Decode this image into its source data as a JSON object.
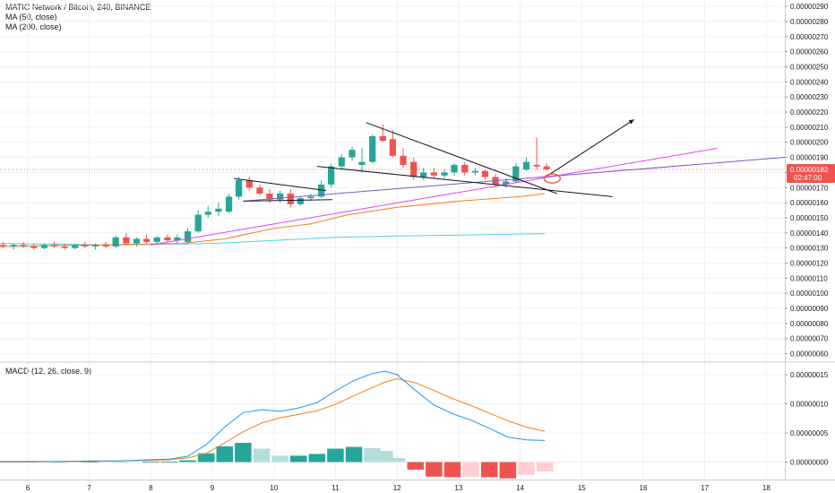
{
  "header": {
    "symbol": "MATIC Network / Bitcoin, 240, BINANCE",
    "ma50": "MA (50, close)",
    "ma200": "MA (200, close)"
  },
  "macd": {
    "label": "MACD (12, 26, close, 9)",
    "line_color": "#2196f3",
    "signal_color": "#f57f17"
  },
  "price_tag": {
    "price": "0.00000182",
    "countdown": "02:47:00",
    "color": "#ef5350"
  },
  "colors": {
    "up": "#26a69a",
    "down": "#ef5350",
    "ma50": "#f57f17",
    "ma200": "#4dd0e1",
    "pink_line": "#e040fb",
    "purple_line": "#7e57c2",
    "trend_line": "#131722",
    "grid": "#eef0f3"
  },
  "chart_data": [
    {
      "type": "candlestick",
      "title": "MATIC Network / Bitcoin, 240, BINANCE",
      "x_ticks": [
        "6",
        "7",
        "8",
        "9",
        "10",
        "11",
        "12",
        "13",
        "14",
        "15",
        "16",
        "17",
        "18"
      ],
      "x_range_days": [
        5.55,
        18.3
      ],
      "y_ticks": [
        "0.00000060",
        "0.00000070",
        "0.00000080",
        "0.00000090",
        "0.00000100",
        "0.00000110",
        "0.00000120",
        "0.00000130",
        "0.00000140",
        "0.00000150",
        "0.00000160",
        "0.00000170",
        "0.00000180",
        "0.00000190",
        "0.00000200",
        "0.00000210",
        "0.00000220",
        "0.00000230",
        "0.00000240",
        "0.00000250",
        "0.00000260",
        "0.00000270",
        "0.00000280",
        "0.00000290"
      ],
      "ylim": [
        5.5e-07,
        2.942e-06
      ],
      "current_price": 1.82e-06,
      "candles": [
        {
          "t": 5.6,
          "o": 132,
          "h": 134,
          "l": 130,
          "c": 131
        },
        {
          "t": 5.77,
          "o": 131,
          "h": 133,
          "l": 129,
          "c": 132
        },
        {
          "t": 5.93,
          "o": 132,
          "h": 134,
          "l": 130,
          "c": 131
        },
        {
          "t": 6.1,
          "o": 131,
          "h": 133,
          "l": 129,
          "c": 130
        },
        {
          "t": 6.27,
          "o": 130,
          "h": 133,
          "l": 129,
          "c": 132
        },
        {
          "t": 6.43,
          "o": 132,
          "h": 134,
          "l": 130,
          "c": 131
        },
        {
          "t": 6.6,
          "o": 131,
          "h": 133,
          "l": 129,
          "c": 130
        },
        {
          "t": 6.77,
          "o": 130,
          "h": 133,
          "l": 129,
          "c": 132
        },
        {
          "t": 6.93,
          "o": 132,
          "h": 134,
          "l": 130,
          "c": 131
        },
        {
          "t": 7.1,
          "o": 131,
          "h": 133,
          "l": 129,
          "c": 132
        },
        {
          "t": 7.27,
          "o": 132,
          "h": 134,
          "l": 130,
          "c": 131
        },
        {
          "t": 7.43,
          "o": 131,
          "h": 138,
          "l": 130,
          "c": 137
        },
        {
          "t": 7.6,
          "o": 137,
          "h": 140,
          "l": 132,
          "c": 133
        },
        {
          "t": 7.77,
          "o": 133,
          "h": 137,
          "l": 131,
          "c": 136
        },
        {
          "t": 7.93,
          "o": 136,
          "h": 139,
          "l": 133,
          "c": 134
        },
        {
          "t": 8.1,
          "o": 134,
          "h": 138,
          "l": 132,
          "c": 137
        },
        {
          "t": 8.27,
          "o": 137,
          "h": 139,
          "l": 134,
          "c": 135
        },
        {
          "t": 8.43,
          "o": 135,
          "h": 139,
          "l": 133,
          "c": 137
        },
        {
          "t": 8.6,
          "o": 134,
          "h": 143,
          "l": 133,
          "c": 141
        },
        {
          "t": 8.77,
          "o": 141,
          "h": 155,
          "l": 140,
          "c": 152
        },
        {
          "t": 8.93,
          "o": 152,
          "h": 158,
          "l": 150,
          "c": 154
        },
        {
          "t": 9.1,
          "o": 154,
          "h": 160,
          "l": 151,
          "c": 156
        },
        {
          "t": 9.27,
          "o": 154,
          "h": 166,
          "l": 153,
          "c": 164
        },
        {
          "t": 9.43,
          "o": 164,
          "h": 177,
          "l": 162,
          "c": 175
        },
        {
          "t": 9.6,
          "o": 175,
          "h": 177,
          "l": 168,
          "c": 170
        },
        {
          "t": 9.77,
          "o": 170,
          "h": 172,
          "l": 165,
          "c": 166
        },
        {
          "t": 9.93,
          "o": 166,
          "h": 169,
          "l": 160,
          "c": 162
        },
        {
          "t": 10.1,
          "o": 162,
          "h": 168,
          "l": 160,
          "c": 166
        },
        {
          "t": 10.27,
          "o": 166,
          "h": 169,
          "l": 157,
          "c": 159
        },
        {
          "t": 10.43,
          "o": 159,
          "h": 164,
          "l": 158,
          "c": 163
        },
        {
          "t": 10.6,
          "o": 163,
          "h": 166,
          "l": 161,
          "c": 164
        },
        {
          "t": 10.77,
          "o": 164,
          "h": 175,
          "l": 163,
          "c": 172
        },
        {
          "t": 10.93,
          "o": 172,
          "h": 186,
          "l": 170,
          "c": 184
        },
        {
          "t": 11.1,
          "o": 184,
          "h": 192,
          "l": 182,
          "c": 190
        },
        {
          "t": 11.27,
          "o": 190,
          "h": 197,
          "l": 188,
          "c": 195
        },
        {
          "t": 11.43,
          "o": 185,
          "h": 196,
          "l": 180,
          "c": 187
        },
        {
          "t": 11.6,
          "o": 187,
          "h": 205,
          "l": 186,
          "c": 204
        },
        {
          "t": 11.77,
          "o": 204,
          "h": 212,
          "l": 200,
          "c": 201
        },
        {
          "t": 11.93,
          "o": 202,
          "h": 208,
          "l": 190,
          "c": 191
        },
        {
          "t": 12.1,
          "o": 191,
          "h": 196,
          "l": 183,
          "c": 185
        },
        {
          "t": 12.27,
          "o": 187,
          "h": 190,
          "l": 175,
          "c": 177
        },
        {
          "t": 12.43,
          "o": 177,
          "h": 183,
          "l": 175,
          "c": 180
        },
        {
          "t": 12.6,
          "o": 180,
          "h": 183,
          "l": 176,
          "c": 178
        },
        {
          "t": 12.77,
          "o": 178,
          "h": 182,
          "l": 176,
          "c": 180
        },
        {
          "t": 12.93,
          "o": 180,
          "h": 186,
          "l": 178,
          "c": 185
        },
        {
          "t": 13.1,
          "o": 185,
          "h": 187,
          "l": 178,
          "c": 180
        },
        {
          "t": 13.27,
          "o": 180,
          "h": 183,
          "l": 178,
          "c": 181
        },
        {
          "t": 13.43,
          "o": 181,
          "h": 182,
          "l": 175,
          "c": 177
        },
        {
          "t": 13.6,
          "o": 177,
          "h": 179,
          "l": 170,
          "c": 172
        },
        {
          "t": 13.77,
          "o": 172,
          "h": 176,
          "l": 170,
          "c": 174
        },
        {
          "t": 13.93,
          "o": 174,
          "h": 186,
          "l": 173,
          "c": 184
        },
        {
          "t": 14.1,
          "o": 182,
          "h": 190,
          "l": 181,
          "c": 187
        },
        {
          "t": 14.27,
          "o": 185,
          "h": 203,
          "l": 182,
          "c": 184
        },
        {
          "t": 14.43,
          "o": 184,
          "h": 186,
          "l": 181,
          "c": 182
        }
      ],
      "price_unit_multiplier": 1e-08
    },
    {
      "type": "line",
      "title": "MACD (12, 26, close, 9)",
      "y_ticks": [
        "0.00000000",
        "0.00000005",
        "0.00000010",
        "0.00000015"
      ],
      "ylim": [
        -3e-08,
        1.7e-07
      ],
      "x": [
        5.55,
        6.0,
        6.5,
        7.0,
        7.5,
        8.0,
        8.3,
        8.6,
        8.9,
        9.2,
        9.5,
        9.8,
        10.1,
        10.4,
        10.7,
        11.0,
        11.3,
        11.6,
        11.8,
        12.0,
        12.3,
        12.6,
        12.9,
        13.2,
        13.5,
        13.8,
        14.1,
        14.4
      ],
      "series": [
        {
          "name": "MACD",
          "values": [
            0.1,
            0.1,
            0.1,
            0.2,
            0.2,
            0.4,
            0.5,
            1.0,
            3.0,
            6.0,
            8.5,
            9.0,
            8.7,
            9.3,
            10.2,
            12.2,
            14.0,
            15.2,
            15.6,
            15.0,
            12.3,
            9.8,
            8.3,
            7.2,
            5.8,
            4.3,
            3.8,
            3.7
          ]
        },
        {
          "name": "Signal",
          "values": [
            0.0,
            0.0,
            0.1,
            0.1,
            0.2,
            0.3,
            0.4,
            0.7,
            1.5,
            3.3,
            5.2,
            6.7,
            7.6,
            8.2,
            8.8,
            9.9,
            11.4,
            12.8,
            13.7,
            14.3,
            13.6,
            12.3,
            10.9,
            9.7,
            8.4,
            7.1,
            6.0,
            5.3
          ]
        }
      ],
      "histogram": [
        0.1,
        0.1,
        0.0,
        0.1,
        0.0,
        0.1,
        0.1,
        0.3,
        1.5,
        2.7,
        3.3,
        2.3,
        1.1,
        1.1,
        1.4,
        2.3,
        2.6,
        2.4,
        1.9,
        0.7,
        -1.3,
        -2.5,
        -2.6,
        -2.5,
        -2.6,
        -2.8,
        -2.2,
        -1.6
      ],
      "value_unit_multiplier": 1e-08
    }
  ]
}
